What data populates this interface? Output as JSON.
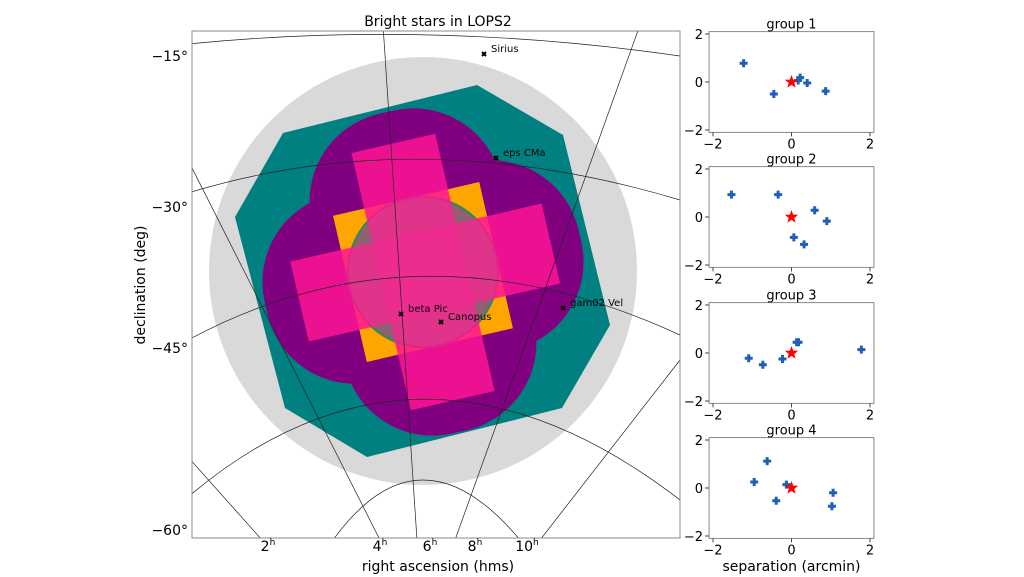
{
  "chart_data": [
    {
      "type": "scatter",
      "title": "Bright stars in LOPS2",
      "xlabel": "right ascension (hms)",
      "ylabel": "declination (deg)",
      "xtick_labels": [
        "2",
        "4",
        "6",
        "8",
        "10"
      ],
      "xtick_unit": "h",
      "ytick_labels": [
        "−15°",
        "−30°",
        "−45°",
        "−60°"
      ],
      "grid": true,
      "stars": [
        "Sirius",
        "eps CMa",
        "beta Pic",
        "Canopus",
        "gam02 Vel"
      ],
      "colors": {
        "background_footprint": "#d9d9d9",
        "wide": "#008080",
        "lobes": "#800080",
        "deep": "#ff1493",
        "core": "#ffa500",
        "ring": "#2e8b57",
        "star_marker": "#000000"
      }
    },
    {
      "type": "scatter",
      "title": "group 1",
      "xlim": [
        -2.1,
        2.1
      ],
      "ylim": [
        -2.1,
        2.1
      ],
      "xtick_labels": [
        "−2",
        "0",
        "2"
      ],
      "ytick_labels": [
        "2",
        "0",
        "−2"
      ],
      "star": [
        0,
        0
      ],
      "x": [
        -1.22,
        -0.45,
        0.22,
        0.17,
        0.4,
        0.87
      ],
      "y": [
        0.78,
        -0.5,
        0.18,
        0.06,
        -0.04,
        -0.38
      ]
    },
    {
      "type": "scatter",
      "title": "group 2",
      "xlim": [
        -2.1,
        2.1
      ],
      "ylim": [
        -2.1,
        2.1
      ],
      "xtick_labels": [
        "−2",
        "0",
        "2"
      ],
      "ytick_labels": [
        "2",
        "0",
        "−2"
      ],
      "star": [
        0,
        0
      ],
      "x": [
        -1.53,
        -0.34,
        0.59,
        0.9,
        0.06,
        0.32
      ],
      "y": [
        0.93,
        0.93,
        0.28,
        -0.17,
        -0.85,
        -1.14
      ]
    },
    {
      "type": "scatter",
      "title": "group 3",
      "xlim": [
        -2.1,
        2.1
      ],
      "ylim": [
        -2.1,
        2.1
      ],
      "xtick_labels": [
        "−2",
        "0",
        "2"
      ],
      "ytick_labels": [
        "2",
        "0",
        "−2"
      ],
      "star": [
        0,
        0
      ],
      "x": [
        -1.09,
        -0.73,
        -0.23,
        0.13,
        0.18,
        1.78
      ],
      "y": [
        -0.22,
        -0.49,
        -0.25,
        0.45,
        0.45,
        0.14
      ]
    },
    {
      "type": "scatter",
      "title": "group 4",
      "xlim": [
        -2.1,
        2.1
      ],
      "ylim": [
        -2.1,
        2.1
      ],
      "xtick_labels": [
        "−2",
        "0",
        "2"
      ],
      "ytick_labels": [
        "2",
        "0",
        "−2"
      ],
      "xlabel": "separation (arcmin)",
      "star": [
        0,
        0
      ],
      "x": [
        -0.62,
        -0.95,
        -0.13,
        -0.39,
        1.06,
        1.03
      ],
      "y": [
        1.12,
        0.25,
        0.14,
        -0.53,
        -0.2,
        -0.76
      ]
    }
  ],
  "colors": {
    "point": "#1f5fb4",
    "reference_star": "#ff0000"
  }
}
